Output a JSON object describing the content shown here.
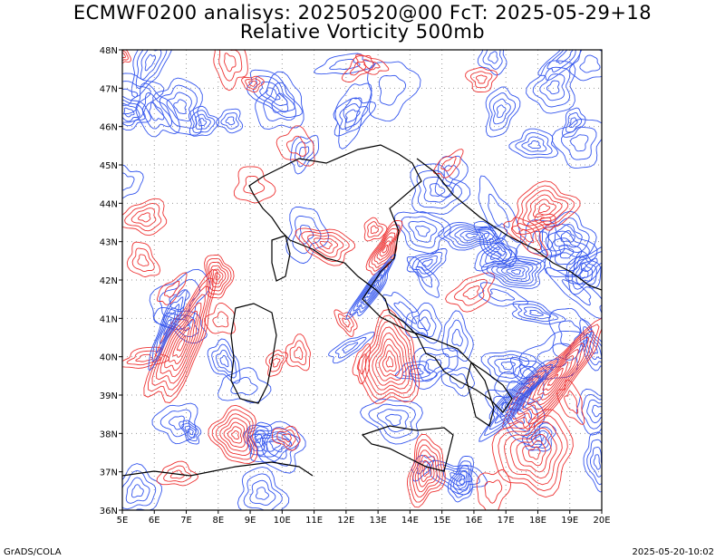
{
  "header": {
    "title_line1": "ECMWF0200 analisys: 20250520@00 FcT: 2025-05-29+18",
    "title_line2": "Relative Vorticity 500mb"
  },
  "map": {
    "lon_range": [
      5,
      20
    ],
    "lat_range": [
      36,
      48
    ],
    "lon_ticks": [
      "5E",
      "6E",
      "7E",
      "8E",
      "9E",
      "10E",
      "11E",
      "12E",
      "13E",
      "14E",
      "15E",
      "16E",
      "17E",
      "18E",
      "19E",
      "20E"
    ],
    "lat_ticks": [
      "36N",
      "37N",
      "38N",
      "39N",
      "40N",
      "41N",
      "42N",
      "43N",
      "44N",
      "45N",
      "46N",
      "47N",
      "48N"
    ],
    "positive_color": "#ee3333",
    "negative_color": "#3355ee",
    "grid": "dotted"
  },
  "footer": {
    "left": "GrADS/COLA",
    "right": "2025-05-20-10:02"
  }
}
